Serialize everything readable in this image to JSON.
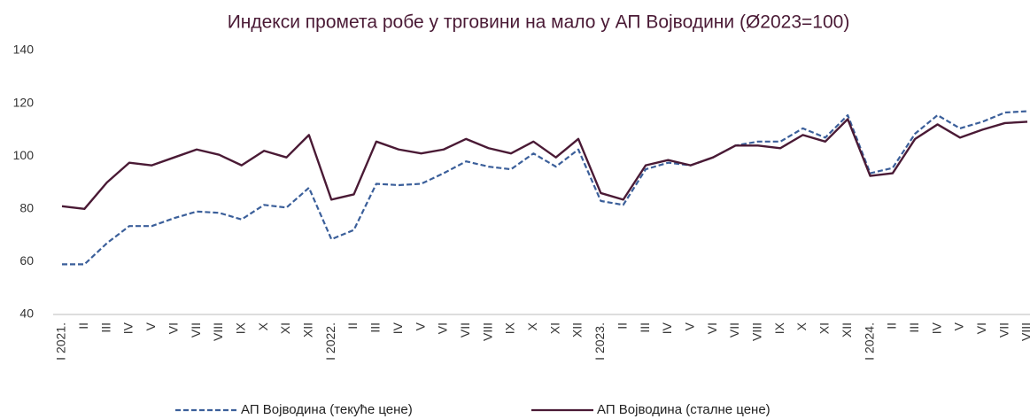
{
  "chart_data": {
    "type": "line",
    "title": "Индекси промета робе у трговини на мало у АП Војводини (Ø2023=100)",
    "categories": [
      "I 2021.",
      "II",
      "III",
      "IV",
      "V",
      "VI",
      "VII",
      "VIII",
      "IX",
      "X",
      "XI",
      "XII",
      "I 2022.",
      "II",
      "III",
      "IV",
      "V",
      "VI",
      "VII",
      "VIII",
      "IX",
      "X",
      "XI",
      "XII",
      "I 2023.",
      "II",
      "III",
      "IV",
      "V",
      "VI",
      "VII",
      "VIII",
      "IX",
      "X",
      "XI",
      "XII",
      "I 2024.",
      "II",
      "III",
      "IV",
      "V",
      "VI",
      "VII",
      "VIII"
    ],
    "series": [
      {
        "name": "АП Војводина (текуће цене)",
        "color": "#3b5f9a",
        "dashed": true,
        "values": [
          59,
          59,
          67,
          73.5,
          73.5,
          76.5,
          79,
          78.5,
          76,
          81.5,
          80.5,
          88,
          68.5,
          72,
          89.5,
          89,
          89.5,
          93.5,
          98,
          96,
          95,
          101,
          96,
          102.5,
          83,
          81.5,
          95,
          97.5,
          96.5,
          99.5,
          104,
          105.5,
          105.5,
          110.5,
          107,
          115.5,
          93.5,
          95.5,
          108.5,
          115.5,
          110.5,
          113,
          116.5,
          117
        ]
      },
      {
        "name": "АП Војводина (сталне цене)",
        "color": "#4a1a35",
        "dashed": false,
        "values": [
          81,
          80,
          90,
          97.5,
          96.5,
          99.5,
          102.5,
          100.5,
          96.5,
          102,
          99.5,
          108,
          83.5,
          85.5,
          105.5,
          102.5,
          101,
          102.5,
          106.5,
          103,
          101,
          105.5,
          99.5,
          106.5,
          86,
          83.5,
          96.5,
          98.5,
          96.5,
          99.5,
          104,
          104,
          103,
          108,
          105.5,
          114,
          92.5,
          93.5,
          106.5,
          112,
          107,
          110,
          112.5,
          113
        ]
      }
    ],
    "ylim": [
      40,
      140
    ],
    "yticks": [
      40,
      60,
      80,
      100,
      120,
      140
    ],
    "grid": false,
    "legend": "bottom"
  }
}
